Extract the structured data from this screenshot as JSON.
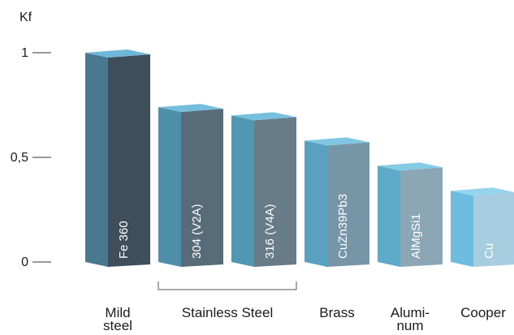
{
  "chart_data": {
    "type": "bar",
    "ylabel": "Kf",
    "ylim": [
      0,
      1
    ],
    "yticks": [
      {
        "value": 0,
        "label": "0"
      },
      {
        "value": 0.5,
        "label": "0,5"
      },
      {
        "value": 1,
        "label": "1"
      }
    ],
    "bars": [
      {
        "label": "Fe 360",
        "value": 1.0,
        "front": "#3e4e5b",
        "side": "#48798f",
        "top": "#6fb7d7"
      },
      {
        "label": "304 (V2A)",
        "value": 0.74,
        "front": "#586b78",
        "side": "#4e8ea9",
        "top": "#74bddc"
      },
      {
        "label": "316 (V4A)",
        "value": 0.7,
        "front": "#677b88",
        "side": "#5196b2",
        "top": "#76bfdd"
      },
      {
        "label": "CuZn39Pb3",
        "value": 0.58,
        "front": "#7696a8",
        "side": "#5aa1c1",
        "top": "#80c7e3"
      },
      {
        "label": "AlMgSi1",
        "value": 0.46,
        "front": "#8ba6b5",
        "side": "#5eaacb",
        "top": "#86cbe6"
      },
      {
        "label": "Cu",
        "value": 0.34,
        "front": "#a6cde0",
        "side": "#6dbde0",
        "top": "#94d4ee"
      }
    ],
    "groups": [
      {
        "lines": [
          "Mild",
          "steel"
        ],
        "from": 0,
        "to": 0,
        "bracket": false
      },
      {
        "lines": [
          "Stainless Steel"
        ],
        "from": 1,
        "to": 2,
        "bracket": true
      },
      {
        "lines": [
          "Brass"
        ],
        "from": 3,
        "to": 3,
        "bracket": false
      },
      {
        "lines": [
          "Alumi-",
          "num"
        ],
        "from": 4,
        "to": 4,
        "bracket": false
      },
      {
        "lines": [
          "Cooper"
        ],
        "from": 5,
        "to": 5,
        "bracket": false
      }
    ]
  }
}
